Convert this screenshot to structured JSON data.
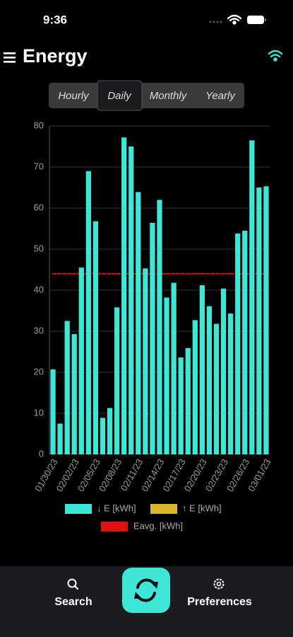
{
  "status": {
    "time": "9:36"
  },
  "header": {
    "title": "Energy"
  },
  "tabs": [
    "Hourly",
    "Daily",
    "Monthly",
    "Yearly"
  ],
  "chart_data": {
    "type": "bar",
    "categories": [
      "01/30/23",
      null,
      null,
      "02/02/23",
      null,
      null,
      "02/05/23",
      null,
      null,
      "02/08/23",
      null,
      null,
      "02/11/23",
      null,
      null,
      "02/14/23",
      null,
      null,
      "02/17/23",
      null,
      null,
      "02/20/23",
      null,
      null,
      "02/23/23",
      null,
      null,
      "02/26/23",
      null,
      null,
      "03/01/23"
    ],
    "series": [
      {
        "name": "↓ E [kWh]",
        "color": "#3ee6d6",
        "values": [
          20.7,
          7.5,
          32.5,
          29.3,
          45.5,
          69,
          56.8,
          8.9,
          11.3,
          35.8,
          77.2,
          75,
          63.9,
          45.3,
          56.4,
          62,
          38.2,
          41.8,
          23.6,
          25.9,
          32.7,
          41.2,
          36.1,
          31.8,
          40.4,
          34.3,
          53.8,
          54.5,
          76.5,
          65,
          65.3
        ]
      },
      {
        "name": "↑ E [kWh]",
        "color": "#d9b72a",
        "values": [
          0,
          0,
          0,
          0,
          0,
          0,
          0,
          0,
          0,
          0,
          0,
          0,
          0,
          0,
          0,
          0,
          0,
          0,
          0,
          0,
          0,
          0,
          0,
          0,
          0,
          0,
          0,
          0,
          0,
          0,
          0
        ]
      }
    ],
    "average": {
      "name": "Eavg. [kWh]",
      "color": "#e01010",
      "value": 44
    },
    "ylim": [
      0,
      80
    ],
    "yticks": [
      0,
      10,
      20,
      30,
      40,
      50,
      60,
      70,
      80
    ],
    "grid": true
  },
  "nav": {
    "left": "Search",
    "right": "Preferences"
  }
}
